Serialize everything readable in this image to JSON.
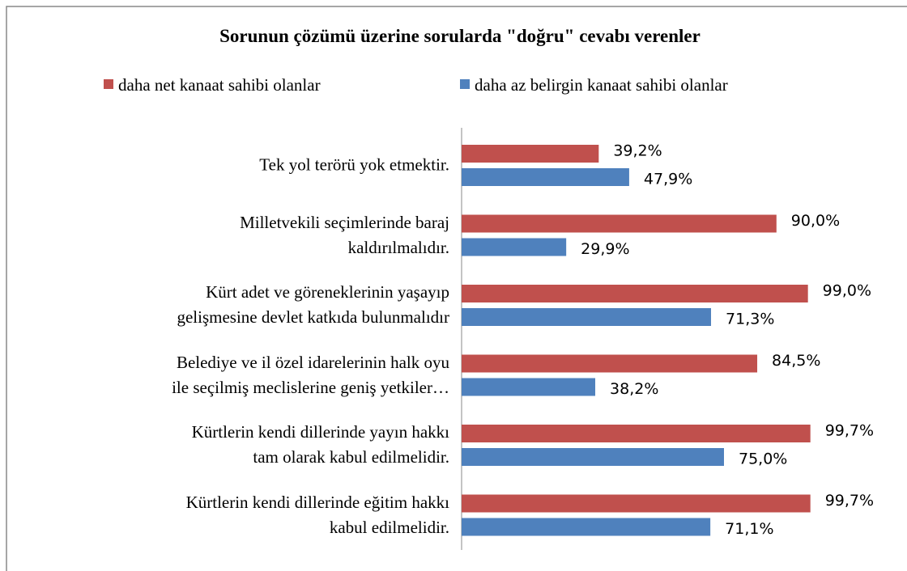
{
  "chart_data": {
    "type": "bar",
    "orientation": "horizontal",
    "title": "Sorunun çözümü üzerine sorularda \"doğru\" cevabı verenler",
    "categories": [
      "Tek yol terörü yok etmektir.",
      "Milletvekili seçimlerinde baraj\nkaldırılmalıdır.",
      "Kürt adet ve göreneklerinin yaşayıp\ngelişmesine devlet katkıda bulunmalıdır",
      "Belediye ve il özel idarelerinin halk oyu\nile seçilmiş meclislerine geniş yetkiler…",
      "Kürtlerin kendi dillerinde yayın hakkı\ntam olarak kabul edilmelidir.",
      "Kürtlerin kendi dillerinde eğitim hakkı\nkabul edilmelidir."
    ],
    "series": [
      {
        "name": "daha net kanaat sahibi olanlar",
        "color": "#c0504d",
        "values": [
          39.2,
          90.0,
          99.0,
          84.5,
          99.7,
          99.7
        ],
        "value_labels": [
          "39,2%",
          "90,0%",
          "99,0%",
          "84,5%",
          "99,7%",
          "99,7%"
        ]
      },
      {
        "name": "daha az belirgin kanaat sahibi olanlar",
        "color": "#4f81bd",
        "values": [
          47.9,
          29.9,
          71.3,
          38.2,
          75.0,
          71.1
        ],
        "value_labels": [
          "47,9%",
          "29,9%",
          "71,3%",
          "38,2%",
          "75,0%",
          "71,1%"
        ]
      }
    ],
    "xlim": [
      0,
      100
    ],
    "legend": "top"
  }
}
